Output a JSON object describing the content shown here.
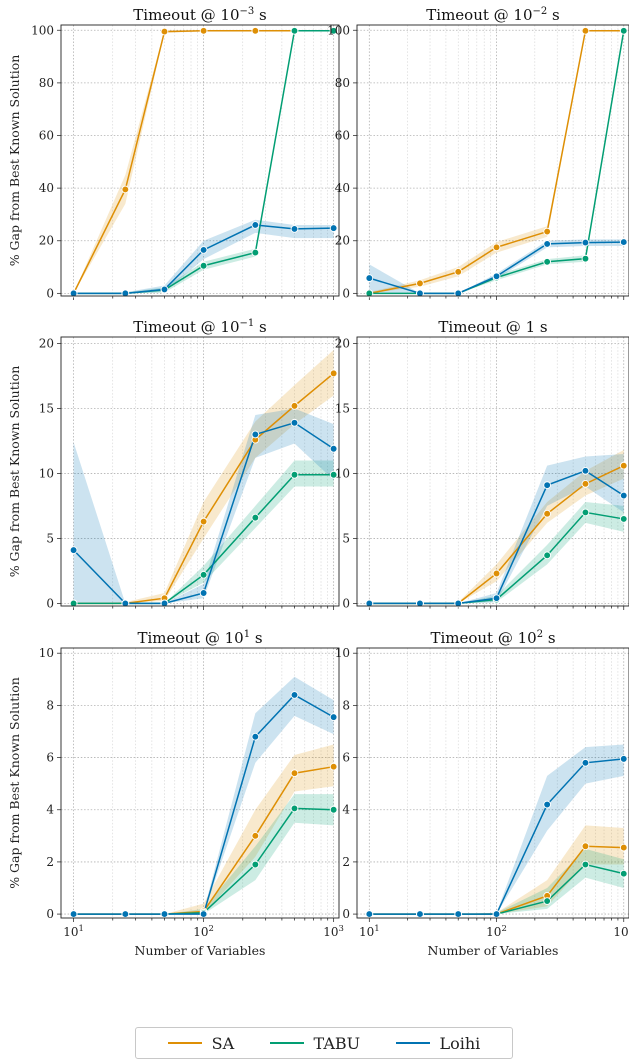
{
  "colors": {
    "SA": "#de8f05",
    "TABU": "#029e73",
    "Loihi": "#0173b2"
  },
  "legend": {
    "items": [
      "SA",
      "TABU",
      "Loihi"
    ]
  },
  "chart_data": [
    {
      "type": "line",
      "title": "Timeout @ 10⁻³ s",
      "title_base": "Timeout @ 10",
      "title_exp": "−3",
      "title_suffix": " s",
      "xlabel": "",
      "ylabel": "% Gap from Best Known Solution",
      "xscale": "log",
      "xlim": [
        8,
        1100
      ],
      "ylim": [
        -1,
        102
      ],
      "yticks": [
        0,
        20,
        40,
        60,
        80,
        100
      ],
      "x": [
        10,
        25,
        50,
        100,
        250,
        500,
        1000
      ],
      "series": [
        {
          "name": "SA",
          "values": [
            0,
            39.5,
            99.5,
            99.8,
            99.8,
            99.8,
            99.8
          ],
          "band": [
            [
              0,
              0
            ],
            [
              34,
              45
            ],
            [
              99,
              100
            ],
            [
              99.6,
              100
            ],
            [
              99.6,
              100
            ],
            [
              99.6,
              100
            ],
            [
              99.6,
              100
            ]
          ]
        },
        {
          "name": "TABU",
          "values": [
            0,
            0,
            1.3,
            10.5,
            15.5,
            99.8,
            99.8
          ],
          "band": [
            [
              0,
              0
            ],
            [
              0,
              0.4
            ],
            [
              0.3,
              2.3
            ],
            [
              9,
              12
            ],
            [
              14,
              17
            ],
            [
              99.6,
              100
            ],
            [
              99.6,
              100
            ]
          ]
        },
        {
          "name": "Loihi",
          "values": [
            0,
            0,
            1.5,
            16.5,
            26,
            24.5,
            24.8
          ],
          "band": [
            [
              0,
              0
            ],
            [
              0,
              0.4
            ],
            [
              0.5,
              3
            ],
            [
              13,
              20
            ],
            [
              23,
              28
            ],
            [
              21,
              26
            ],
            [
              21,
              26
            ]
          ]
        }
      ]
    },
    {
      "type": "line",
      "title": "Timeout @ 10⁻² s",
      "title_base": "Timeout @ 10",
      "title_exp": "−2",
      "title_suffix": " s",
      "xlabel": "",
      "ylabel": "",
      "xscale": "log",
      "xlim": [
        8,
        1100
      ],
      "ylim": [
        -1,
        102
      ],
      "yticks": [
        0,
        20,
        40,
        60,
        80,
        100
      ],
      "x": [
        10,
        25,
        50,
        100,
        250,
        500,
        1000
      ],
      "series": [
        {
          "name": "SA",
          "values": [
            0,
            3.8,
            8.2,
            17.5,
            23.5,
            99.8,
            99.8
          ],
          "band": [
            [
              0,
              0.5
            ],
            [
              2.5,
              5
            ],
            [
              6.5,
              10
            ],
            [
              15.5,
              19.5
            ],
            [
              21.5,
              25.5
            ],
            [
              99.6,
              100
            ],
            [
              99.6,
              100
            ]
          ]
        },
        {
          "name": "TABU",
          "values": [
            0,
            0,
            0,
            6,
            12,
            13.2,
            99.8
          ],
          "band": [
            [
              0,
              0
            ],
            [
              0,
              0
            ],
            [
              0,
              0
            ],
            [
              5,
              7
            ],
            [
              11,
              13
            ],
            [
              12,
              14.5
            ],
            [
              99.6,
              100
            ]
          ]
        },
        {
          "name": "Loihi",
          "values": [
            5.8,
            0,
            0,
            6.5,
            18.8,
            19.3,
            19.5
          ],
          "band": [
            [
              0,
              11
            ],
            [
              0,
              0
            ],
            [
              0,
              0
            ],
            [
              5.5,
              7.5
            ],
            [
              17.5,
              20
            ],
            [
              18,
              20.5
            ],
            [
              18,
              20.5
            ]
          ]
        }
      ]
    },
    {
      "type": "line",
      "title": "Timeout @ 10⁻¹ s",
      "title_base": "Timeout @ 10",
      "title_exp": "−1",
      "title_suffix": " s",
      "xlabel": "",
      "ylabel": "% Gap from Best Known Solution",
      "xscale": "log",
      "xlim": [
        8,
        1100
      ],
      "ylim": [
        -0.2,
        20.5
      ],
      "yticks": [
        0,
        5,
        10,
        15,
        20
      ],
      "x": [
        10,
        25,
        50,
        100,
        250,
        500,
        1000
      ],
      "series": [
        {
          "name": "SA",
          "values": [
            0,
            0,
            0.4,
            6.3,
            12.6,
            15.2,
            17.7
          ],
          "band": [
            [
              0,
              0
            ],
            [
              0,
              0.1
            ],
            [
              0.2,
              0.8
            ],
            [
              5,
              7.8
            ],
            [
              11.2,
              14
            ],
            [
              13.8,
              16.8
            ],
            [
              16,
              19.5
            ]
          ]
        },
        {
          "name": "TABU",
          "values": [
            0,
            0,
            0,
            2.2,
            6.6,
            9.9,
            9.9
          ],
          "band": [
            [
              0,
              0
            ],
            [
              0,
              0
            ],
            [
              0,
              0
            ],
            [
              1.6,
              2.9
            ],
            [
              5.8,
              7.5
            ],
            [
              9,
              11
            ],
            [
              9,
              11
            ]
          ]
        },
        {
          "name": "Loihi",
          "values": [
            4.1,
            0,
            0,
            0.8,
            13,
            13.9,
            11.9
          ],
          "band": [
            [
              0,
              12.4
            ],
            [
              0,
              0
            ],
            [
              0,
              0
            ],
            [
              0.4,
              1.5
            ],
            [
              11.2,
              14.5
            ],
            [
              12.3,
              15
            ],
            [
              9.5,
              13.8
            ]
          ]
        }
      ]
    },
    {
      "type": "line",
      "title": "Timeout @ 1 s",
      "title_base": "Timeout @ 1",
      "title_exp": "",
      "title_suffix": " s",
      "xlabel": "",
      "ylabel": "",
      "xscale": "log",
      "xlim": [
        8,
        1100
      ],
      "ylim": [
        -0.2,
        20.5
      ],
      "yticks": [
        0,
        5,
        10,
        15,
        20
      ],
      "x": [
        10,
        25,
        50,
        100,
        250,
        500,
        1000
      ],
      "series": [
        {
          "name": "SA",
          "values": [
            0,
            0,
            0,
            2.3,
            6.9,
            9.2,
            10.6
          ],
          "band": [
            [
              0,
              0
            ],
            [
              0,
              0
            ],
            [
              0,
              0.1
            ],
            [
              1.7,
              3
            ],
            [
              6.2,
              7.8
            ],
            [
              8.3,
              10.2
            ],
            [
              9.6,
              11.8
            ]
          ]
        },
        {
          "name": "TABU",
          "values": [
            0,
            0,
            0,
            0.3,
            3.7,
            7,
            6.5
          ],
          "band": [
            [
              0,
              0
            ],
            [
              0,
              0
            ],
            [
              0,
              0
            ],
            [
              0.1,
              0.6
            ],
            [
              3,
              4.5
            ],
            [
              6.2,
              7.8
            ],
            [
              5.5,
              7.5
            ]
          ]
        },
        {
          "name": "Loihi",
          "values": [
            0,
            0,
            0,
            0.4,
            9.1,
            10.2,
            8.3
          ],
          "band": [
            [
              0,
              0
            ],
            [
              0,
              0
            ],
            [
              0,
              0
            ],
            [
              0.1,
              0.8
            ],
            [
              7.5,
              10.6
            ],
            [
              9,
              11.3
            ],
            [
              7,
              11.5
            ]
          ]
        }
      ]
    },
    {
      "type": "line",
      "title": "Timeout @ 10¹ s",
      "title_base": "Timeout @ 10",
      "title_exp": "1",
      "title_suffix": " s",
      "xlabel": "Number of Variables",
      "ylabel": "% Gap from Best Known Solution",
      "xscale": "log",
      "xlim": [
        8,
        1100
      ],
      "ylim": [
        -0.15,
        10.2
      ],
      "yticks": [
        0,
        2,
        4,
        6,
        8,
        10
      ],
      "x": [
        10,
        25,
        50,
        100,
        250,
        500,
        1000
      ],
      "series": [
        {
          "name": "SA",
          "values": [
            0,
            0,
            0,
            0.1,
            3,
            5.4,
            5.65
          ],
          "band": [
            [
              0,
              0
            ],
            [
              0,
              0
            ],
            [
              0,
              0
            ],
            [
              0,
              0.4
            ],
            [
              2.2,
              4
            ],
            [
              4.7,
              6.1
            ],
            [
              4.9,
              6.5
            ]
          ]
        },
        {
          "name": "TABU",
          "values": [
            0,
            0,
            0,
            0.05,
            1.9,
            4.05,
            4
          ],
          "band": [
            [
              0,
              0
            ],
            [
              0,
              0
            ],
            [
              0,
              0
            ],
            [
              0,
              0.2
            ],
            [
              1.3,
              2.6
            ],
            [
              3.5,
              4.6
            ],
            [
              3.4,
              4.6
            ]
          ]
        },
        {
          "name": "Loihi",
          "values": [
            0,
            0,
            0,
            0,
            6.8,
            8.4,
            7.55
          ],
          "band": [
            [
              0,
              0
            ],
            [
              0,
              0
            ],
            [
              0,
              0
            ],
            [
              0,
              0.1
            ],
            [
              5.8,
              7.7
            ],
            [
              7.6,
              9.1
            ],
            [
              6.9,
              8.2
            ]
          ]
        }
      ]
    },
    {
      "type": "line",
      "title": "Timeout @ 10² s",
      "title_base": "Timeout @ 10",
      "title_exp": "2",
      "title_suffix": " s",
      "xlabel": "Number of Variables",
      "ylabel": "",
      "xscale": "log",
      "xlim": [
        8,
        1100
      ],
      "ylim": [
        -0.15,
        10.2
      ],
      "yticks": [
        0,
        2,
        4,
        6,
        8,
        10
      ],
      "x": [
        10,
        25,
        50,
        100,
        250,
        500,
        1000
      ],
      "series": [
        {
          "name": "SA",
          "values": [
            0,
            0,
            0,
            0,
            0.7,
            2.6,
            2.55
          ],
          "band": [
            [
              0,
              0
            ],
            [
              0,
              0
            ],
            [
              0,
              0
            ],
            [
              0,
              0.05
            ],
            [
              0.3,
              1.3
            ],
            [
              1.9,
              3.4
            ],
            [
              1.9,
              3.3
            ]
          ]
        },
        {
          "name": "TABU",
          "values": [
            0,
            0,
            0,
            0,
            0.5,
            1.9,
            1.55
          ],
          "band": [
            [
              0,
              0
            ],
            [
              0,
              0
            ],
            [
              0,
              0
            ],
            [
              0,
              0.05
            ],
            [
              0.2,
              1
            ],
            [
              1.4,
              2.5
            ],
            [
              1,
              2.1
            ]
          ]
        },
        {
          "name": "Loihi",
          "values": [
            0,
            0,
            0,
            0,
            4.2,
            5.8,
            5.95
          ],
          "band": [
            [
              0,
              0
            ],
            [
              0,
              0
            ],
            [
              0,
              0
            ],
            [
              0,
              0.05
            ],
            [
              3.2,
              5.3
            ],
            [
              5,
              6.4
            ],
            [
              5.3,
              6.5
            ]
          ]
        }
      ]
    }
  ]
}
